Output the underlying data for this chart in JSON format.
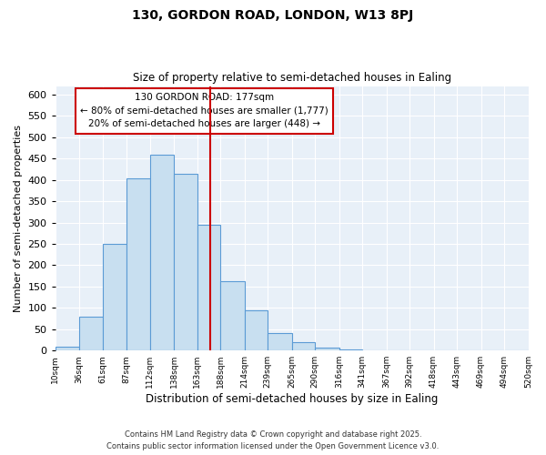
{
  "title": "130, GORDON ROAD, LONDON, W13 8PJ",
  "subtitle": "Size of property relative to semi-detached houses in Ealing",
  "xlabel": "Distribution of semi-detached houses by size in Ealing",
  "ylabel": "Number of semi-detached properties",
  "bin_labels": [
    "10sqm",
    "36sqm",
    "61sqm",
    "87sqm",
    "112sqm",
    "138sqm",
    "163sqm",
    "188sqm",
    "214sqm",
    "239sqm",
    "265sqm",
    "290sqm",
    "316sqm",
    "341sqm",
    "367sqm",
    "392sqm",
    "418sqm",
    "443sqm",
    "469sqm",
    "494sqm",
    "520sqm"
  ],
  "bar_heights": [
    8,
    80,
    250,
    403,
    460,
    415,
    295,
    162,
    95,
    42,
    19,
    6,
    2,
    0,
    0,
    0,
    0,
    0,
    0,
    0
  ],
  "bar_color": "#c8dff0",
  "bar_edge_color": "#5b9bd5",
  "vline_x": 177,
  "vline_color": "#cc0000",
  "ylim": [
    0,
    620
  ],
  "yticks": [
    0,
    50,
    100,
    150,
    200,
    250,
    300,
    350,
    400,
    450,
    500,
    550,
    600
  ],
  "annotation_line1": "130 GORDON ROAD: 177sqm",
  "annotation_line2": "← 80% of semi-detached houses are smaller (1,777)",
  "annotation_line3": "20% of semi-detached houses are larger (448) →",
  "footnote1": "Contains HM Land Registry data © Crown copyright and database right 2025.",
  "footnote2": "Contains public sector information licensed under the Open Government Licence v3.0.",
  "bin_edges": [
    10,
    36,
    61,
    87,
    112,
    138,
    163,
    188,
    214,
    239,
    265,
    290,
    316,
    341,
    367,
    392,
    418,
    443,
    469,
    494,
    520
  ],
  "plot_bg_color": "#e8f0f8",
  "background_color": "#ffffff",
  "grid_color": "#ffffff"
}
